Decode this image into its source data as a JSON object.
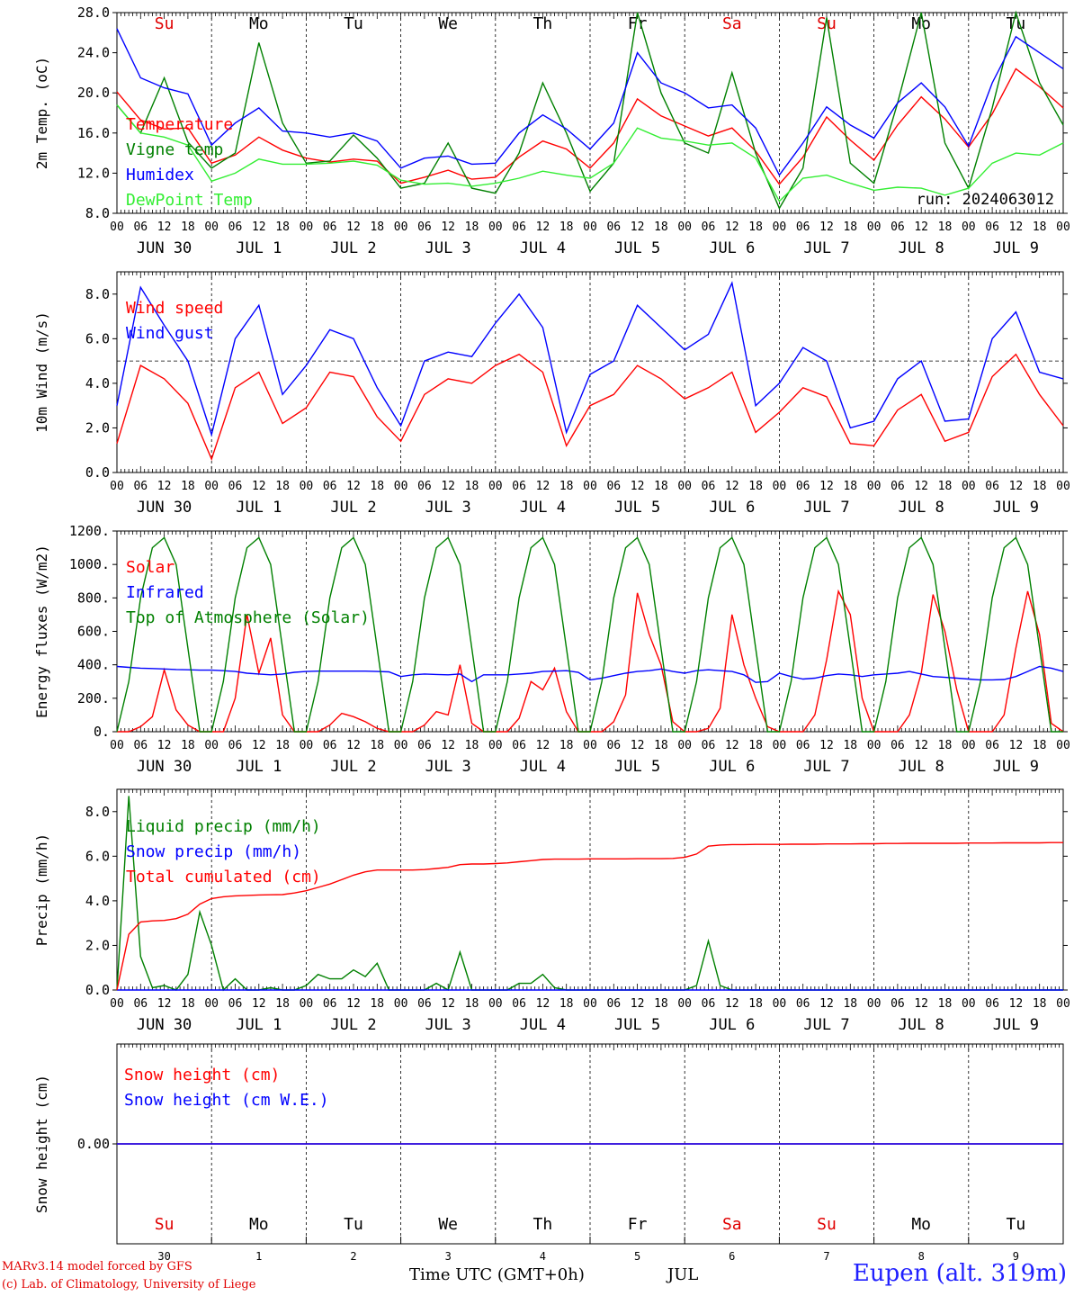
{
  "footer": {
    "credit_line1": "MARv3.14 model forced by GFS",
    "credit_line2": "(c) Lab. of Climatology, University of Liege",
    "time_label": "Time UTC (GMT+0h)",
    "month_label": "JUL",
    "station": "Eupen (alt. 319m)"
  },
  "weekdays": [
    {
      "label": "Su",
      "color": "#e00000"
    },
    {
      "label": "Mo",
      "color": "#000000"
    },
    {
      "label": "Tu",
      "color": "#000000"
    },
    {
      "label": "We",
      "color": "#000000"
    },
    {
      "label": "Th",
      "color": "#000000"
    },
    {
      "label": "Fr",
      "color": "#000000"
    },
    {
      "label": "Sa",
      "color": "#e00000"
    },
    {
      "label": "Su",
      "color": "#e00000"
    },
    {
      "label": "Mo",
      "color": "#000000"
    },
    {
      "label": "Tu",
      "color": "#000000"
    }
  ],
  "date_labels": [
    "JUN 30",
    "JUL 1",
    "JUL 2",
    "JUL 3",
    "JUL 4",
    "JUL 5",
    "JUL 6",
    "JUL 7",
    "JUL 8",
    "JUL 9"
  ],
  "day_numbers": [
    "30",
    "1",
    "2",
    "3",
    "4",
    "5",
    "6",
    "7",
    "8",
    "9"
  ],
  "hour_ticks": [
    "00",
    "06",
    "12",
    "18"
  ],
  "chart_data": [
    {
      "type": "line",
      "ylabel": "2m Temp. (oC)",
      "ylim": [
        8,
        28
      ],
      "yticks": [
        "8.0",
        "12.0",
        "16.0",
        "20.0",
        "24.0",
        "28.0"
      ],
      "annotation": "run: 2024063012",
      "show_weekdays": true,
      "x_hours": [
        0,
        6,
        12,
        18,
        24,
        30,
        36,
        42,
        48,
        54,
        60,
        66,
        72,
        78,
        84,
        90,
        96,
        102,
        108,
        114,
        120,
        126,
        132,
        138,
        144,
        150,
        156,
        162,
        168,
        174,
        180,
        186,
        192,
        198,
        204,
        210,
        216,
        222,
        228,
        234,
        240
      ],
      "series": [
        {
          "name": "Temperature",
          "color": "#ff0000",
          "values": [
            20.1,
            17.3,
            16.4,
            16.5,
            13.0,
            13.8,
            15.6,
            14.3,
            13.5,
            13.1,
            13.4,
            13.2,
            11.0,
            11.6,
            12.3,
            11.4,
            11.6,
            13.6,
            15.2,
            14.4,
            12.5,
            15.0,
            19.4,
            17.7,
            16.7,
            15.7,
            16.5,
            14.2,
            10.9,
            13.6,
            17.6,
            15.3,
            13.3,
            16.8,
            19.6,
            17.4,
            14.6,
            17.9,
            22.4,
            20.6,
            18.5
          ]
        },
        {
          "name": "Vigne temp",
          "color": "#008000",
          "values": [
            18.8,
            16.0,
            21.5,
            15.1,
            12.5,
            14.0,
            25.0,
            17.0,
            13.0,
            13.2,
            15.8,
            13.5,
            10.5,
            11.0,
            15.0,
            10.5,
            10.0,
            14.0,
            21.0,
            16.0,
            10.2,
            13.0,
            28.0,
            20.0,
            15.0,
            14.0,
            22.0,
            14.0,
            8.5,
            12.5,
            27.5,
            13.0,
            11.0,
            19.0,
            28.0,
            15.0,
            10.5,
            18.5,
            28.0,
            21.0,
            16.8
          ]
        },
        {
          "name": "Humidex",
          "color": "#0000ff",
          "values": [
            26.4,
            21.5,
            20.5,
            19.9,
            14.8,
            17.0,
            18.5,
            16.2,
            16.0,
            15.6,
            16.0,
            15.2,
            12.5,
            13.5,
            13.7,
            12.9,
            13.0,
            16.0,
            17.8,
            16.4,
            14.4,
            17.0,
            24.0,
            21.0,
            20.0,
            18.5,
            18.8,
            16.5,
            11.8,
            15.0,
            18.6,
            16.8,
            15.5,
            19.0,
            21.0,
            18.6,
            14.7,
            21.0,
            25.6,
            24.0,
            22.4
          ]
        },
        {
          "name": "DewPoint Temp",
          "color": "#33ee33",
          "values": [
            18.8,
            16.0,
            15.6,
            14.8,
            11.2,
            12.0,
            13.4,
            12.9,
            12.9,
            13.0,
            13.2,
            12.8,
            11.3,
            10.9,
            11.0,
            10.7,
            11.0,
            11.5,
            12.2,
            11.8,
            11.5,
            13.0,
            16.5,
            15.5,
            15.2,
            14.8,
            15.0,
            13.5,
            9.2,
            11.5,
            11.8,
            11.0,
            10.3,
            10.6,
            10.5,
            9.8,
            10.5,
            13.0,
            14.0,
            13.8,
            15.0
          ]
        }
      ]
    },
    {
      "type": "line",
      "ylabel": "10m Wind (m/s)",
      "ylim": [
        0,
        9
      ],
      "yticks": [
        "0.0",
        "2.0",
        "4.0",
        "6.0",
        "8.0"
      ],
      "reference_line": 5,
      "x_hours": [
        0,
        6,
        12,
        18,
        24,
        30,
        36,
        42,
        48,
        54,
        60,
        66,
        72,
        78,
        84,
        90,
        96,
        102,
        108,
        114,
        120,
        126,
        132,
        138,
        144,
        150,
        156,
        162,
        168,
        174,
        180,
        186,
        192,
        198,
        204,
        210,
        216,
        222,
        228,
        234,
        240
      ],
      "series": [
        {
          "name": "Wind speed",
          "color": "#ff0000",
          "values": [
            1.3,
            4.8,
            4.2,
            3.1,
            0.6,
            3.8,
            4.5,
            2.2,
            2.9,
            4.5,
            4.3,
            2.5,
            1.4,
            3.5,
            4.2,
            4.0,
            4.8,
            5.3,
            4.5,
            1.2,
            3.0,
            3.5,
            4.8,
            4.2,
            3.3,
            3.8,
            4.5,
            1.8,
            2.7,
            3.8,
            3.4,
            1.3,
            1.2,
            2.8,
            3.5,
            1.4,
            1.8,
            4.3,
            5.3,
            3.5,
            2.1
          ]
        },
        {
          "name": "Wind gust",
          "color": "#0000ff",
          "values": [
            3.0,
            8.3,
            6.6,
            5.0,
            1.7,
            6.0,
            7.5,
            3.5,
            4.8,
            6.4,
            6.0,
            3.8,
            2.1,
            5.0,
            5.4,
            5.2,
            6.7,
            8.0,
            6.5,
            1.8,
            4.4,
            5.0,
            7.5,
            6.5,
            5.5,
            6.2,
            8.5,
            3.0,
            4.0,
            5.6,
            5.0,
            2.0,
            2.3,
            4.2,
            5.0,
            2.3,
            2.4,
            6.0,
            7.2,
            4.5,
            4.2
          ]
        }
      ]
    },
    {
      "type": "line",
      "ylabel": "Energy fluxes (W/m2)",
      "ylim": [
        0,
        1200
      ],
      "yticks": [
        "0.",
        "200.",
        "400.",
        "600.",
        "800.",
        "1000.",
        "1200."
      ],
      "x_hours": [
        0,
        3,
        6,
        9,
        12,
        15,
        18,
        21,
        24,
        27,
        30,
        33,
        36,
        39,
        42,
        45,
        48,
        51,
        54,
        57,
        60,
        63,
        66,
        69,
        72,
        75,
        78,
        81,
        84,
        87,
        90,
        93,
        96,
        99,
        102,
        105,
        108,
        111,
        114,
        117,
        120,
        123,
        126,
        129,
        132,
        135,
        138,
        141,
        144,
        147,
        150,
        153,
        156,
        159,
        162,
        165,
        168,
        171,
        174,
        177,
        180,
        183,
        186,
        189,
        192,
        195,
        198,
        201,
        204,
        207,
        210,
        213,
        216,
        219,
        222,
        225,
        228,
        231,
        234,
        237,
        240
      ],
      "series": [
        {
          "name": "Solar",
          "color": "#ff0000",
          "values": [
            0,
            0,
            30,
            90,
            370,
            130,
            40,
            0,
            0,
            0,
            200,
            700,
            350,
            560,
            100,
            0,
            0,
            0,
            40,
            110,
            90,
            60,
            20,
            0,
            0,
            0,
            40,
            120,
            100,
            400,
            50,
            0,
            0,
            0,
            80,
            300,
            250,
            380,
            120,
            0,
            0,
            0,
            60,
            220,
            830,
            580,
            400,
            60,
            0,
            0,
            20,
            140,
            700,
            400,
            200,
            30,
            0,
            0,
            0,
            100,
            430,
            840,
            700,
            200,
            0,
            0,
            0,
            100,
            350,
            820,
            600,
            250,
            0,
            0,
            0,
            100,
            500,
            840,
            580,
            50,
            0
          ]
        },
        {
          "name": "Infrared",
          "color": "#0000ff",
          "values": [
            390,
            385,
            380,
            378,
            375,
            372,
            370,
            368,
            368,
            365,
            360,
            350,
            345,
            340,
            345,
            355,
            360,
            362,
            362,
            362,
            362,
            362,
            360,
            358,
            330,
            340,
            345,
            342,
            340,
            345,
            300,
            340,
            340,
            340,
            345,
            350,
            360,
            362,
            365,
            355,
            310,
            320,
            335,
            350,
            360,
            365,
            375,
            360,
            350,
            365,
            370,
            365,
            360,
            340,
            295,
            300,
            350,
            330,
            315,
            320,
            335,
            345,
            340,
            330,
            340,
            345,
            350,
            360,
            345,
            330,
            325,
            320,
            315,
            310,
            310,
            312,
            330,
            360,
            390,
            380,
            360
          ]
        },
        {
          "name": "Top of Atmosphere (Solar)",
          "color": "#008000",
          "values": [
            0,
            300,
            800,
            1100,
            1160,
            1000,
            500,
            0,
            0,
            300,
            800,
            1100,
            1160,
            1000,
            500,
            0,
            0,
            300,
            800,
            1100,
            1160,
            1000,
            500,
            0,
            0,
            300,
            800,
            1100,
            1160,
            1000,
            500,
            0,
            0,
            300,
            800,
            1100,
            1160,
            1000,
            500,
            0,
            0,
            300,
            800,
            1100,
            1160,
            1000,
            500,
            0,
            0,
            300,
            800,
            1100,
            1160,
            1000,
            500,
            0,
            0,
            300,
            800,
            1100,
            1160,
            1000,
            500,
            0,
            0,
            300,
            800,
            1100,
            1160,
            1000,
            500,
            0,
            0,
            300,
            800,
            1100,
            1160,
            1000,
            500,
            0,
            0
          ]
        }
      ]
    },
    {
      "type": "line",
      "ylabel": "Precip (mm/h)",
      "ylim": [
        0,
        9
      ],
      "yticks": [
        "0.0",
        "2.0",
        "4.0",
        "6.0",
        "8.0"
      ],
      "x_hours": [
        0,
        3,
        6,
        9,
        12,
        15,
        18,
        21,
        24,
        27,
        30,
        33,
        36,
        39,
        42,
        45,
        48,
        51,
        54,
        57,
        60,
        63,
        66,
        69,
        72,
        75,
        78,
        81,
        84,
        87,
        90,
        93,
        96,
        99,
        102,
        105,
        108,
        111,
        114,
        117,
        120,
        123,
        126,
        129,
        132,
        135,
        138,
        141,
        144,
        147,
        150,
        153,
        156,
        159,
        162,
        165,
        168,
        171,
        174,
        177,
        180,
        183,
        186,
        189,
        192,
        195,
        198,
        201,
        204,
        207,
        210,
        213,
        216,
        219,
        222,
        225,
        228,
        231,
        234,
        237,
        240
      ],
      "series": [
        {
          "name": "Liquid precip (mm/h)",
          "color": "#008000",
          "values": [
            0,
            8.7,
            1.5,
            0.1,
            0.2,
            0,
            0.7,
            3.5,
            2.0,
            0,
            0.5,
            0,
            0,
            0.1,
            0,
            0,
            0.2,
            0.7,
            0.5,
            0.5,
            0.9,
            0.6,
            1.2,
            0,
            0,
            0,
            0,
            0.3,
            0,
            1.7,
            0,
            0,
            0,
            0,
            0.3,
            0.3,
            0.7,
            0.1,
            0,
            0,
            0,
            0,
            0,
            0,
            0,
            0,
            0,
            0,
            0,
            0.2,
            2.2,
            0.2,
            0,
            0,
            0,
            0,
            0,
            0,
            0,
            0,
            0,
            0,
            0,
            0,
            0,
            0,
            0,
            0,
            0,
            0,
            0,
            0,
            0,
            0,
            0,
            0,
            0,
            0,
            0,
            0,
            0
          ]
        },
        {
          "name": "Snow precip (mm/h)",
          "color": "#0000ff",
          "values": [
            0,
            0,
            0,
            0,
            0,
            0,
            0,
            0,
            0,
            0,
            0,
            0,
            0,
            0,
            0,
            0,
            0,
            0,
            0,
            0,
            0,
            0,
            0,
            0,
            0,
            0,
            0,
            0,
            0,
            0,
            0,
            0,
            0,
            0,
            0,
            0,
            0,
            0,
            0,
            0,
            0,
            0,
            0,
            0,
            0,
            0,
            0,
            0,
            0,
            0,
            0,
            0,
            0,
            0,
            0,
            0,
            0,
            0,
            0,
            0,
            0,
            0,
            0,
            0,
            0,
            0,
            0,
            0,
            0,
            0,
            0,
            0,
            0,
            0,
            0,
            0,
            0,
            0,
            0,
            0,
            0
          ]
        },
        {
          "name": "Total cumulated (cm)",
          "color": "#ff0000",
          "values": [
            0,
            2.5,
            3.05,
            3.1,
            3.12,
            3.2,
            3.4,
            3.85,
            4.1,
            4.18,
            4.22,
            4.24,
            4.26,
            4.27,
            4.28,
            4.35,
            4.45,
            4.6,
            4.75,
            4.95,
            5.15,
            5.3,
            5.38,
            5.38,
            5.38,
            5.38,
            5.4,
            5.45,
            5.5,
            5.62,
            5.65,
            5.65,
            5.67,
            5.7,
            5.75,
            5.8,
            5.85,
            5.87,
            5.87,
            5.87,
            5.88,
            5.88,
            5.88,
            5.88,
            5.89,
            5.89,
            5.89,
            5.9,
            5.95,
            6.1,
            6.45,
            6.5,
            6.52,
            6.52,
            6.53,
            6.53,
            6.53,
            6.54,
            6.54,
            6.54,
            6.55,
            6.55,
            6.55,
            6.56,
            6.56,
            6.57,
            6.57,
            6.58,
            6.58,
            6.58,
            6.58,
            6.58,
            6.59,
            6.59,
            6.59,
            6.6,
            6.6,
            6.6,
            6.6,
            6.61,
            6.61
          ]
        }
      ]
    },
    {
      "type": "line",
      "ylabel": "Snow height (cm)",
      "ylim": [
        -1,
        1
      ],
      "yticks": [
        "0.00"
      ],
      "bottom_axis": true,
      "x_hours": [
        0,
        240
      ],
      "series": [
        {
          "name": "Snow height (cm)",
          "color": "#ff0000",
          "values": [
            0,
            0
          ]
        },
        {
          "name": "Snow height (cm W.E.)",
          "color": "#0000ff",
          "values": [
            0,
            0
          ]
        }
      ]
    }
  ]
}
